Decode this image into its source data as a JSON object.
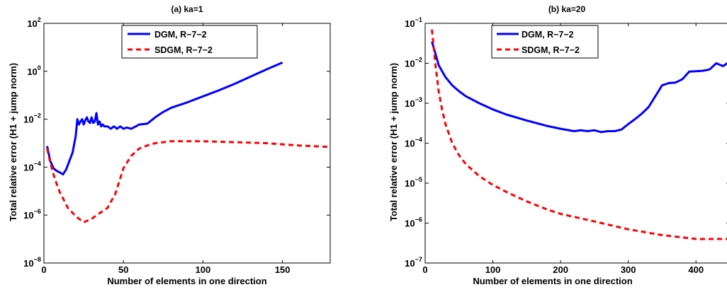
{
  "chart_data": [
    {
      "type": "line",
      "title": "(a) ka=1",
      "xlabel": "Number of elements in one direction",
      "ylabel": "Total relative error (H1 + jump norm)",
      "xlim": [
        0,
        180
      ],
      "ylim_exp": [
        -8,
        2
      ],
      "yscale": "log",
      "xticks": [
        0,
        50,
        100,
        150
      ],
      "yticks_exp": [
        -8,
        -6,
        -4,
        -2,
        0,
        2
      ],
      "legend_position": "top-center",
      "series": [
        {
          "name": "DGM, R−7−2",
          "color": "#0000ff",
          "dash": "solid",
          "x": [
            2,
            4,
            6,
            8,
            10,
            12,
            14,
            16,
            18,
            20,
            21,
            22,
            23,
            24,
            25,
            26,
            27,
            28,
            29,
            30,
            31,
            32,
            33,
            34,
            35,
            36,
            37,
            38,
            40,
            42,
            44,
            46,
            48,
            50,
            52,
            55,
            60,
            65,
            70,
            75,
            80,
            90,
            100,
            110,
            120,
            130,
            140,
            150
          ],
          "y": [
            0.00075,
            0.00018,
            9e-05,
            7e-05,
            6e-05,
            5e-05,
            8e-05,
            0.00018,
            0.0004,
            0.002,
            0.01,
            0.006,
            0.008,
            0.01,
            0.006,
            0.009,
            0.012,
            0.008,
            0.007,
            0.012,
            0.007,
            0.008,
            0.018,
            0.006,
            0.008,
            0.005,
            0.006,
            0.005,
            0.005,
            0.004,
            0.005,
            0.004,
            0.005,
            0.004,
            0.0045,
            0.004,
            0.006,
            0.0065,
            0.012,
            0.02,
            0.03,
            0.05,
            0.09,
            0.16,
            0.3,
            0.6,
            1.2,
            2.3
          ]
        },
        {
          "name": "SDGM, R−7−2",
          "color": "#ff0000",
          "dash": "dashed",
          "x": [
            2,
            4,
            6,
            8,
            10,
            12,
            15,
            20,
            25,
            30,
            35,
            40,
            45,
            50,
            55,
            60,
            65,
            70,
            80,
            90,
            100,
            120,
            140,
            160,
            180
          ],
          "y": [
            0.0006,
            0.00015,
            5e-05,
            2e-05,
            9e-06,
            5e-06,
            2e-06,
            9e-07,
            5e-07,
            7e-07,
            1.2e-06,
            2e-06,
            8e-06,
            9e-05,
            0.0003,
            0.0006,
            0.0008,
            0.001,
            0.0012,
            0.0012,
            0.0012,
            0.0011,
            0.001,
            0.0008,
            0.0007
          ]
        }
      ]
    },
    {
      "type": "line",
      "title": "(b) ka=20",
      "xlabel": "Number of elements in one direction",
      "ylabel": "Total relative error (H1 + jump norm)",
      "xlim": [
        0,
        450
      ],
      "ylim_exp": [
        -7,
        -1
      ],
      "yscale": "log",
      "xticks": [
        0,
        100,
        200,
        300,
        400
      ],
      "yticks_exp": [
        -7,
        -6,
        -5,
        -4,
        -3,
        -2,
        -1
      ],
      "legend_position": "top-left",
      "series": [
        {
          "name": "DGM, R−7−2",
          "color": "#0000ff",
          "dash": "solid",
          "x": [
            10,
            15,
            20,
            30,
            40,
            50,
            60,
            80,
            100,
            120,
            150,
            180,
            200,
            220,
            230,
            240,
            250,
            260,
            270,
            280,
            290,
            300,
            310,
            320,
            330,
            340,
            350,
            360,
            370,
            380,
            390,
            400,
            410,
            420,
            430,
            440,
            450
          ],
          "y": [
            0.035,
            0.018,
            0.009,
            0.0045,
            0.0028,
            0.002,
            0.0015,
            0.001,
            0.0007,
            0.00052,
            0.00037,
            0.00027,
            0.00023,
            0.0002,
            0.00021,
            0.0002,
            0.00021,
            0.00019,
            0.0002,
            0.0002,
            0.00022,
            0.0003,
            0.0004,
            0.00055,
            0.0008,
            0.0015,
            0.0028,
            0.0032,
            0.0033,
            0.004,
            0.0062,
            0.0063,
            0.0065,
            0.007,
            0.01,
            0.0085,
            0.011
          ]
        },
        {
          "name": "SDGM, R−7−2",
          "color": "#ff0000",
          "dash": "dashed",
          "x": [
            10,
            15,
            20,
            25,
            30,
            40,
            50,
            60,
            80,
            100,
            120,
            150,
            180,
            200,
            250,
            300,
            350,
            400,
            420,
            450
          ],
          "y": [
            0.07,
            0.01,
            0.002,
            0.0007,
            0.0003,
            0.0001,
            5e-05,
            3e-05,
            1.5e-05,
            9e-06,
            6e-06,
            3.5e-06,
            2.2e-06,
            1.7e-06,
            1.1e-06,
            7e-07,
            5e-07,
            4e-07,
            4e-07,
            4e-07
          ]
        }
      ]
    }
  ]
}
